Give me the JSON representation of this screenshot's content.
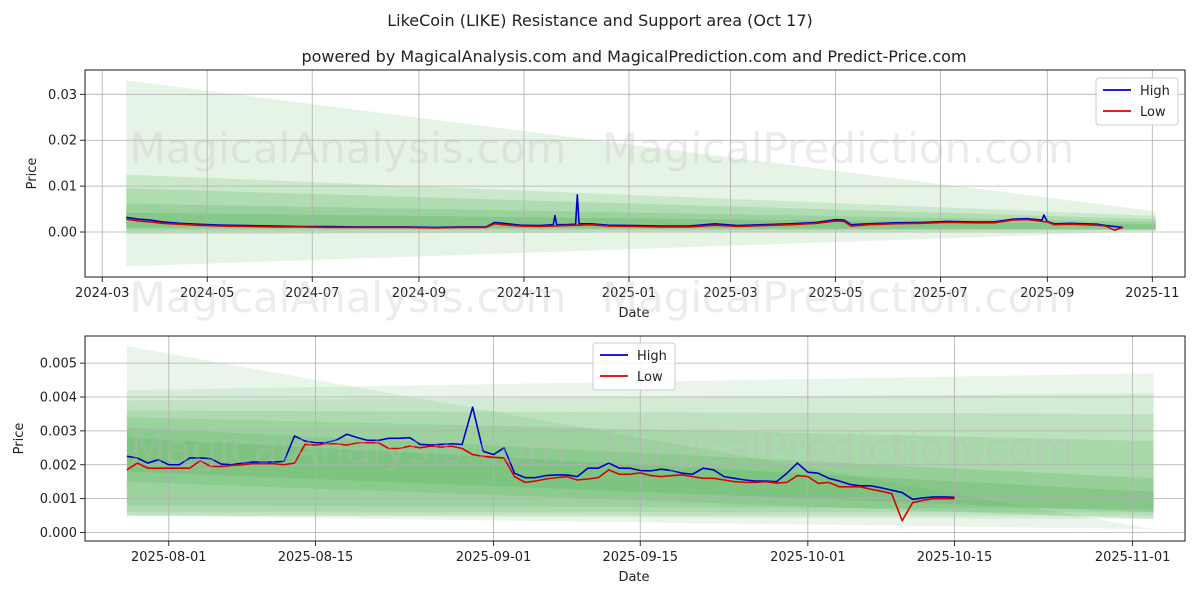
{
  "title": "LikeCoin (LIKE) Resistance and Support area (Oct 17)",
  "subtitle": "powered by MagicalAnalysis.com and MagicalPrediction.com and Predict-Price.com",
  "watermarks": [
    "MagicalAnalysis.com",
    "MagicalPrediction.com"
  ],
  "colors": {
    "high": "#0000cc",
    "low": "#dd0000",
    "band": "#4caf50",
    "grid": "#b0b0b0"
  },
  "chart_data": [
    {
      "type": "line",
      "name": "full-history",
      "xlabel": "Date",
      "ylabel": "Price",
      "x_range": [
        "2024-02-20",
        "2025-11-20"
      ],
      "ylim": [
        -0.0098,
        0.0353
      ],
      "x_ticks": [
        "2024-03-01",
        "2024-05-01",
        "2024-07-01",
        "2024-09-01",
        "2024-11-01",
        "2025-01-01",
        "2025-03-01",
        "2025-05-01",
        "2025-07-01",
        "2025-09-01",
        "2025-11-01"
      ],
      "x_tick_labels": [
        "2024-03",
        "2024-05",
        "2024-07",
        "2024-09",
        "2024-11",
        "2025-01",
        "2025-03",
        "2025-05",
        "2025-07",
        "2025-09",
        "2025-11"
      ],
      "y_ticks": [
        0.0,
        0.01,
        0.02,
        0.03
      ],
      "y_tick_labels": [
        "0.00",
        "0.01",
        "0.02",
        "0.03"
      ],
      "legend": {
        "position": "top-right",
        "entries": [
          "High",
          "Low"
        ]
      },
      "grid": true,
      "bands": [
        {
          "x": [
            "2024-03-15",
            "2025-11-03"
          ],
          "upper": [
            0.033,
            0.0045
          ],
          "lower": [
            -0.0075,
            0.0002
          ],
          "opacity": 0.14
        },
        {
          "x": [
            "2024-03-15",
            "2025-11-03"
          ],
          "upper": [
            0.0125,
            0.0035
          ],
          "lower": [
            -0.0005,
            0.0003
          ],
          "opacity": 0.18
        },
        {
          "x": [
            "2024-03-15",
            "2025-11-03"
          ],
          "upper": [
            0.0095,
            0.0028
          ],
          "lower": [
            0.0002,
            0.0004
          ],
          "opacity": 0.2
        },
        {
          "x": [
            "2024-03-15",
            "2025-11-03"
          ],
          "upper": [
            0.0062,
            0.0022
          ],
          "lower": [
            0.0006,
            0.0005
          ],
          "opacity": 0.22
        },
        {
          "x": [
            "2024-03-15",
            "2025-11-03"
          ],
          "upper": [
            0.0042,
            0.0017
          ],
          "lower": [
            0.001,
            0.0007
          ],
          "opacity": 0.25
        }
      ],
      "series": [
        {
          "name": "High",
          "x": [
            "2024-03-15",
            "2024-03-22",
            "2024-03-29",
            "2024-04-05",
            "2024-04-15",
            "2024-04-25",
            "2024-05-10",
            "2024-05-25",
            "2024-06-10",
            "2024-06-25",
            "2024-07-10",
            "2024-07-25",
            "2024-08-10",
            "2024-08-25",
            "2024-09-10",
            "2024-09-25",
            "2024-10-10",
            "2024-10-15",
            "2024-10-20",
            "2024-10-30",
            "2024-11-10",
            "2024-11-18",
            "2024-11-19",
            "2024-11-20",
            "2024-11-25",
            "2024-12-01",
            "2024-12-02",
            "2024-12-03",
            "2024-12-10",
            "2024-12-20",
            "2025-01-05",
            "2025-01-20",
            "2025-02-05",
            "2025-02-20",
            "2025-03-05",
            "2025-03-20",
            "2025-04-05",
            "2025-04-20",
            "2025-05-01",
            "2025-05-06",
            "2025-05-10",
            "2025-05-20",
            "2025-06-05",
            "2025-06-20",
            "2025-07-05",
            "2025-07-20",
            "2025-08-01",
            "2025-08-12",
            "2025-08-20",
            "2025-08-29",
            "2025-08-30",
            "2025-09-01",
            "2025-09-05",
            "2025-09-15",
            "2025-09-30",
            "2025-10-05",
            "2025-10-10",
            "2025-10-15"
          ],
          "values": [
            0.0032,
            0.0028,
            0.0026,
            0.0022,
            0.0019,
            0.0017,
            0.0015,
            0.0014,
            0.0013,
            0.0012,
            0.0012,
            0.0011,
            0.0011,
            0.0011,
            0.001,
            0.0011,
            0.0011,
            0.0021,
            0.0019,
            0.0015,
            0.0014,
            0.0016,
            0.0036,
            0.0016,
            0.0016,
            0.0017,
            0.0081,
            0.0018,
            0.0018,
            0.0015,
            0.0014,
            0.0013,
            0.0013,
            0.0018,
            0.0014,
            0.0016,
            0.0018,
            0.0021,
            0.0027,
            0.0026,
            0.0016,
            0.0018,
            0.002,
            0.0021,
            0.0023,
            0.0022,
            0.0022,
            0.0028,
            0.0029,
            0.0026,
            0.0037,
            0.0023,
            0.0018,
            0.0019,
            0.0017,
            0.0014,
            0.0012,
            0.001
          ]
        },
        {
          "name": "Low",
          "x": [
            "2024-03-15",
            "2024-03-22",
            "2024-03-29",
            "2024-04-05",
            "2024-04-15",
            "2024-04-25",
            "2024-05-10",
            "2024-05-25",
            "2024-06-10",
            "2024-06-25",
            "2024-07-10",
            "2024-07-25",
            "2024-08-10",
            "2024-08-25",
            "2024-09-10",
            "2024-09-25",
            "2024-10-10",
            "2024-10-15",
            "2024-10-20",
            "2024-10-30",
            "2024-11-10",
            "2024-11-25",
            "2024-12-10",
            "2024-12-20",
            "2025-01-05",
            "2025-01-20",
            "2025-02-05",
            "2025-02-20",
            "2025-03-05",
            "2025-03-20",
            "2025-04-05",
            "2025-04-20",
            "2025-05-01",
            "2025-05-06",
            "2025-05-10",
            "2025-05-20",
            "2025-06-05",
            "2025-06-20",
            "2025-07-05",
            "2025-07-20",
            "2025-08-01",
            "2025-08-12",
            "2025-08-20",
            "2025-09-01",
            "2025-09-05",
            "2025-09-15",
            "2025-09-30",
            "2025-10-05",
            "2025-10-10",
            "2025-10-15"
          ],
          "values": [
            0.0028,
            0.0024,
            0.0022,
            0.0019,
            0.0017,
            0.0015,
            0.0013,
            0.0012,
            0.0011,
            0.0011,
            0.001,
            0.001,
            0.001,
            0.001,
            0.0009,
            0.001,
            0.001,
            0.0018,
            0.0016,
            0.0013,
            0.0012,
            0.0014,
            0.0016,
            0.0013,
            0.0012,
            0.0011,
            0.0011,
            0.0015,
            0.0012,
            0.0014,
            0.0016,
            0.0019,
            0.0024,
            0.0023,
            0.0013,
            0.0016,
            0.0018,
            0.0019,
            0.0021,
            0.002,
            0.002,
            0.0026,
            0.0027,
            0.0022,
            0.0016,
            0.0017,
            0.0015,
            0.0013,
            0.0004,
            0.001
          ]
        }
      ]
    },
    {
      "type": "line",
      "name": "recent-zoom",
      "xlabel": "Date",
      "ylabel": "Price",
      "x_range": [
        "2025-07-24",
        "2025-11-06"
      ],
      "ylim": [
        -0.00025,
        0.0058
      ],
      "x_ticks": [
        "2025-08-01",
        "2025-08-15",
        "2025-09-01",
        "2025-09-15",
        "2025-10-01",
        "2025-10-15",
        "2025-11-01"
      ],
      "x_tick_labels": [
        "2025-08-01",
        "2025-08-15",
        "2025-09-01",
        "2025-09-15",
        "2025-10-01",
        "2025-10-15",
        "2025-11-01"
      ],
      "y_ticks": [
        0.0,
        0.001,
        0.002,
        0.003,
        0.004,
        0.005
      ],
      "y_tick_labels": [
        "0.000",
        "0.001",
        "0.002",
        "0.003",
        "0.004",
        "0.005"
      ],
      "legend": {
        "position": "top-center",
        "entries": [
          "High",
          "Low"
        ]
      },
      "grid": true,
      "bands": [
        {
          "x": [
            "2025-07-28",
            "2025-11-03"
          ],
          "upper": [
            0.0055,
            0.0001
          ],
          "lower": [
            0.0005,
            0.0001
          ],
          "opacity": 0.12
        },
        {
          "x": [
            "2025-07-28",
            "2025-11-03"
          ],
          "upper": [
            0.0042,
            0.0047
          ],
          "lower": [
            0.0005,
            0.0004
          ],
          "opacity": 0.12
        },
        {
          "x": [
            "2025-07-28",
            "2025-11-03"
          ],
          "upper": [
            0.0039,
            0.0041
          ],
          "lower": [
            0.0005,
            0.0005
          ],
          "opacity": 0.14
        },
        {
          "x": [
            "2025-07-28",
            "2025-11-03"
          ],
          "upper": [
            0.0036,
            0.0035
          ],
          "lower": [
            0.0006,
            0.0006
          ],
          "opacity": 0.16
        },
        {
          "x": [
            "2025-07-28",
            "2025-11-03"
          ],
          "upper": [
            0.0034,
            0.0027
          ],
          "lower": [
            0.0008,
            0.0007
          ],
          "opacity": 0.18
        },
        {
          "x": [
            "2025-07-28",
            "2025-11-03"
          ],
          "upper": [
            0.0031,
            0.0016
          ],
          "lower": [
            0.0015,
            0.0004
          ],
          "opacity": 0.2
        },
        {
          "x": [
            "2025-07-28",
            "2025-11-03"
          ],
          "upper": [
            0.0028,
            0.0012
          ],
          "lower": [
            0.0018,
            0.0006
          ],
          "opacity": 0.22
        }
      ],
      "series": [
        {
          "name": "High",
          "x": [
            "2025-07-28",
            "2025-07-29",
            "2025-07-30",
            "2025-07-31",
            "2025-08-01",
            "2025-08-02",
            "2025-08-03",
            "2025-08-04",
            "2025-08-05",
            "2025-08-06",
            "2025-08-07",
            "2025-08-08",
            "2025-08-09",
            "2025-08-10",
            "2025-08-11",
            "2025-08-12",
            "2025-08-13",
            "2025-08-14",
            "2025-08-15",
            "2025-08-16",
            "2025-08-17",
            "2025-08-18",
            "2025-08-19",
            "2025-08-20",
            "2025-08-21",
            "2025-08-22",
            "2025-08-23",
            "2025-08-24",
            "2025-08-25",
            "2025-08-26",
            "2025-08-27",
            "2025-08-28",
            "2025-08-29",
            "2025-08-30",
            "2025-08-31",
            "2025-09-01",
            "2025-09-02",
            "2025-09-03",
            "2025-09-04",
            "2025-09-05",
            "2025-09-06",
            "2025-09-07",
            "2025-09-08",
            "2025-09-09",
            "2025-09-10",
            "2025-09-11",
            "2025-09-12",
            "2025-09-13",
            "2025-09-14",
            "2025-09-15",
            "2025-09-16",
            "2025-09-17",
            "2025-09-18",
            "2025-09-19",
            "2025-09-20",
            "2025-09-21",
            "2025-09-22",
            "2025-09-23",
            "2025-09-24",
            "2025-09-25",
            "2025-09-26",
            "2025-09-27",
            "2025-09-28",
            "2025-09-29",
            "2025-09-30",
            "2025-10-01",
            "2025-10-02",
            "2025-10-03",
            "2025-10-04",
            "2025-10-05",
            "2025-10-06",
            "2025-10-07",
            "2025-10-08",
            "2025-10-09",
            "2025-10-10",
            "2025-10-11",
            "2025-10-12",
            "2025-10-13",
            "2025-10-14",
            "2025-10-15"
          ],
          "values": [
            0.00225,
            0.0022,
            0.00205,
            0.00215,
            0.002,
            0.002,
            0.0022,
            0.0022,
            0.00218,
            0.00202,
            0.002,
            0.00205,
            0.00208,
            0.00208,
            0.00208,
            0.0021,
            0.00285,
            0.0027,
            0.00265,
            0.00265,
            0.00273,
            0.0029,
            0.0028,
            0.00272,
            0.00272,
            0.00278,
            0.00278,
            0.0028,
            0.0026,
            0.00258,
            0.0026,
            0.00262,
            0.0026,
            0.0037,
            0.0024,
            0.0023,
            0.0025,
            0.00175,
            0.00162,
            0.00162,
            0.00168,
            0.0017,
            0.0017,
            0.00165,
            0.0019,
            0.0019,
            0.00205,
            0.0019,
            0.0019,
            0.00183,
            0.00182,
            0.00187,
            0.00183,
            0.00175,
            0.00172,
            0.0019,
            0.00185,
            0.00165,
            0.0016,
            0.00155,
            0.00152,
            0.00152,
            0.0015,
            0.00175,
            0.00205,
            0.00178,
            0.00175,
            0.0016,
            0.00152,
            0.00142,
            0.00138,
            0.00138,
            0.00132,
            0.00125,
            0.00118,
            0.00098,
            0.00102,
            0.00105,
            0.00105,
            0.00104
          ]
        },
        {
          "name": "Low",
          "x": [
            "2025-07-28",
            "2025-07-29",
            "2025-07-30",
            "2025-07-31",
            "2025-08-01",
            "2025-08-02",
            "2025-08-03",
            "2025-08-04",
            "2025-08-05",
            "2025-08-06",
            "2025-08-07",
            "2025-08-08",
            "2025-08-09",
            "2025-08-10",
            "2025-08-11",
            "2025-08-12",
            "2025-08-13",
            "2025-08-14",
            "2025-08-15",
            "2025-08-16",
            "2025-08-17",
            "2025-08-18",
            "2025-08-19",
            "2025-08-20",
            "2025-08-21",
            "2025-08-22",
            "2025-08-23",
            "2025-08-24",
            "2025-08-25",
            "2025-08-26",
            "2025-08-27",
            "2025-08-28",
            "2025-08-29",
            "2025-08-30",
            "2025-08-31",
            "2025-09-01",
            "2025-09-02",
            "2025-09-03",
            "2025-09-04",
            "2025-09-05",
            "2025-09-06",
            "2025-09-07",
            "2025-09-08",
            "2025-09-09",
            "2025-09-10",
            "2025-09-11",
            "2025-09-12",
            "2025-09-13",
            "2025-09-14",
            "2025-09-15",
            "2025-09-16",
            "2025-09-17",
            "2025-09-18",
            "2025-09-19",
            "2025-09-20",
            "2025-09-21",
            "2025-09-22",
            "2025-09-23",
            "2025-09-24",
            "2025-09-25",
            "2025-09-26",
            "2025-09-27",
            "2025-09-28",
            "2025-09-29",
            "2025-09-30",
            "2025-10-01",
            "2025-10-02",
            "2025-10-03",
            "2025-10-04",
            "2025-10-05",
            "2025-10-06",
            "2025-10-07",
            "2025-10-08",
            "2025-10-09",
            "2025-10-10",
            "2025-10-11",
            "2025-10-12",
            "2025-10-13",
            "2025-10-14",
            "2025-10-15"
          ],
          "values": [
            0.00185,
            0.00205,
            0.0019,
            0.0019,
            0.0019,
            0.0019,
            0.0019,
            0.00212,
            0.00195,
            0.00195,
            0.00198,
            0.002,
            0.00203,
            0.00203,
            0.00203,
            0.002,
            0.00205,
            0.0026,
            0.00258,
            0.00262,
            0.00262,
            0.00258,
            0.00265,
            0.00265,
            0.00265,
            0.00248,
            0.00248,
            0.00255,
            0.0025,
            0.00255,
            0.00252,
            0.00255,
            0.00248,
            0.0023,
            0.00225,
            0.00222,
            0.0022,
            0.00165,
            0.00148,
            0.00152,
            0.00158,
            0.00162,
            0.00165,
            0.00155,
            0.00158,
            0.00162,
            0.00185,
            0.00172,
            0.00172,
            0.00176,
            0.00168,
            0.00165,
            0.00168,
            0.0017,
            0.00165,
            0.0016,
            0.0016,
            0.00155,
            0.0015,
            0.00148,
            0.00148,
            0.0015,
            0.00146,
            0.00148,
            0.00168,
            0.00165,
            0.00145,
            0.00148,
            0.00135,
            0.00135,
            0.00135,
            0.00128,
            0.00122,
            0.00115,
            0.00035,
            0.00088,
            0.00095,
            0.001,
            0.001,
            0.001
          ]
        }
      ]
    }
  ]
}
